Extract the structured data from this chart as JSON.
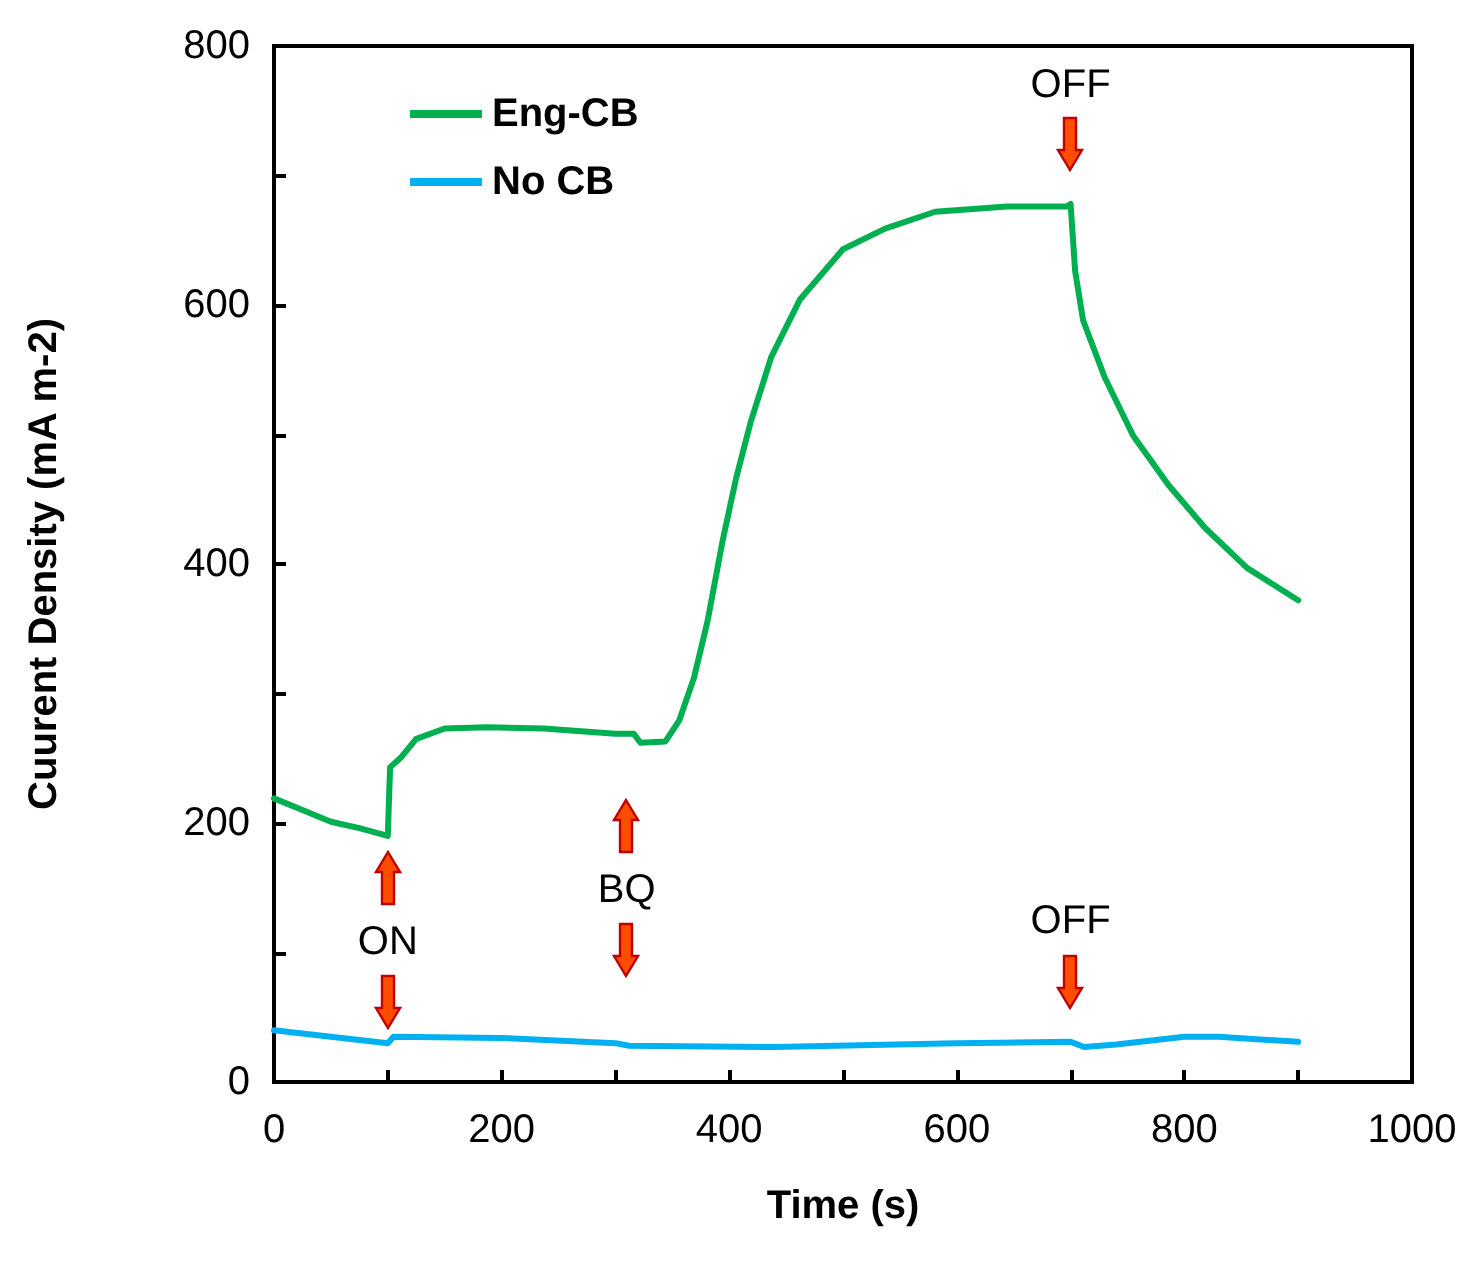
{
  "chart_data": {
    "type": "line",
    "xlabel": "Time (s)",
    "ylabel": "Cuurent Density (mA m-2)",
    "xlim": [
      0,
      1000
    ],
    "xticks": [
      0,
      {
        "value": 100,
        "label": null
      },
      200,
      {
        "value": 300,
        "label": null
      },
      400,
      {
        "value": 500,
        "label": null
      },
      600,
      {
        "value": 700,
        "label": null
      },
      800,
      {
        "value": 900,
        "label": null
      },
      1000
    ],
    "ylim": [
      0,
      800
    ],
    "yticks": [
      0,
      {
        "value": 100,
        "label": null
      },
      200,
      {
        "value": 300,
        "label": null
      },
      400,
      {
        "value": 500,
        "label": null
      },
      600,
      {
        "value": 700,
        "label": null
      },
      800
    ],
    "grid": false,
    "legend": "top left",
    "marker": "none",
    "line_style": "solid",
    "series": [
      {
        "name": "Eng-CB",
        "color": "#00b050",
        "x": [
          0,
          25,
          50,
          75,
          100,
          102,
          112,
          125,
          150,
          187,
          237,
          300,
          316,
          322,
          344,
          356,
          369,
          381,
          394,
          406,
          419,
          437,
          462,
          500,
          537,
          581,
          644,
          697,
          700,
          704,
          711,
          730,
          755,
          786,
          818,
          855,
          900
        ],
        "values": [
          219,
          210,
          201,
          196,
          190,
          243,
          251,
          265,
          273,
          274,
          273,
          269,
          269,
          262,
          263,
          279,
          312,
          356,
          417,
          466,
          510,
          560,
          604,
          643,
          659,
          672,
          676,
          676,
          678,
          626,
          588,
          544,
          499,
          461,
          428,
          397,
          372
        ]
      },
      {
        "name": "No CB",
        "color": "#00b0f0",
        "x": [
          0,
          50,
          100,
          105,
          200,
          300,
          312,
          440,
          600,
          700,
          712,
          740,
          800,
          830,
          900
        ],
        "values": [
          40,
          35,
          30,
          35,
          34,
          30,
          28,
          27,
          30,
          31,
          27,
          29,
          35,
          35,
          31
        ]
      }
    ],
    "annotations": [
      "ON",
      "BQ",
      "OFF",
      "OFF"
    ]
  }
}
